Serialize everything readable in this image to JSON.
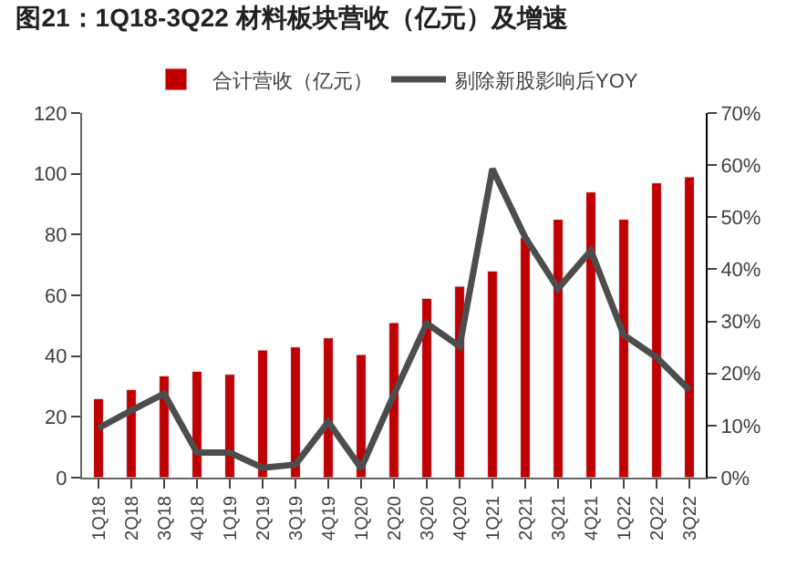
{
  "chart_data": {
    "type": "bar",
    "title": "图21：1Q18-3Q22 材料板块营收（亿元）及增速",
    "categories": [
      "1Q18",
      "2Q18",
      "3Q18",
      "4Q18",
      "1Q19",
      "2Q19",
      "3Q19",
      "4Q19",
      "1Q20",
      "2Q20",
      "3Q20",
      "4Q20",
      "1Q21",
      "2Q21",
      "3Q21",
      "4Q21",
      "1Q22",
      "2Q22",
      "3Q22"
    ],
    "series": [
      {
        "name": "合计营收（亿元）",
        "color": "#c00000",
        "values": [
          26,
          29,
          33.5,
          35,
          34,
          42,
          43,
          46,
          40.5,
          51,
          59,
          63,
          68,
          79,
          85,
          94,
          85,
          97,
          99
        ]
      },
      {
        "name": "剔除新股影响后YOY",
        "type": "line",
        "axis": "y2",
        "color": "#4d4d4d",
        "values": [
          9.5,
          12.9,
          16.1,
          4.8,
          4.8,
          1.9,
          2.5,
          10.7,
          1.8,
          16,
          29.6,
          25.2,
          59.3,
          46.1,
          36.3,
          43.6,
          27.4,
          23.1,
          16.8
        ]
      }
    ],
    "ylim": [
      0,
      120
    ],
    "yticks": [
      0,
      20,
      40,
      60,
      80,
      100,
      120
    ],
    "y2lim": [
      0,
      70
    ],
    "y2ticks": [
      {
        "value": 0,
        "label": "0%"
      },
      {
        "value": 10,
        "label": "10%"
      },
      {
        "value": 20,
        "label": "20%"
      },
      {
        "value": 30,
        "label": "30%"
      },
      {
        "value": 40,
        "label": "40%"
      },
      {
        "value": 50,
        "label": "50%"
      },
      {
        "value": 60,
        "label": "60%"
      },
      {
        "value": 70,
        "label": "70%"
      }
    ],
    "legend": "top",
    "marker": "none",
    "line_style": "solid"
  }
}
